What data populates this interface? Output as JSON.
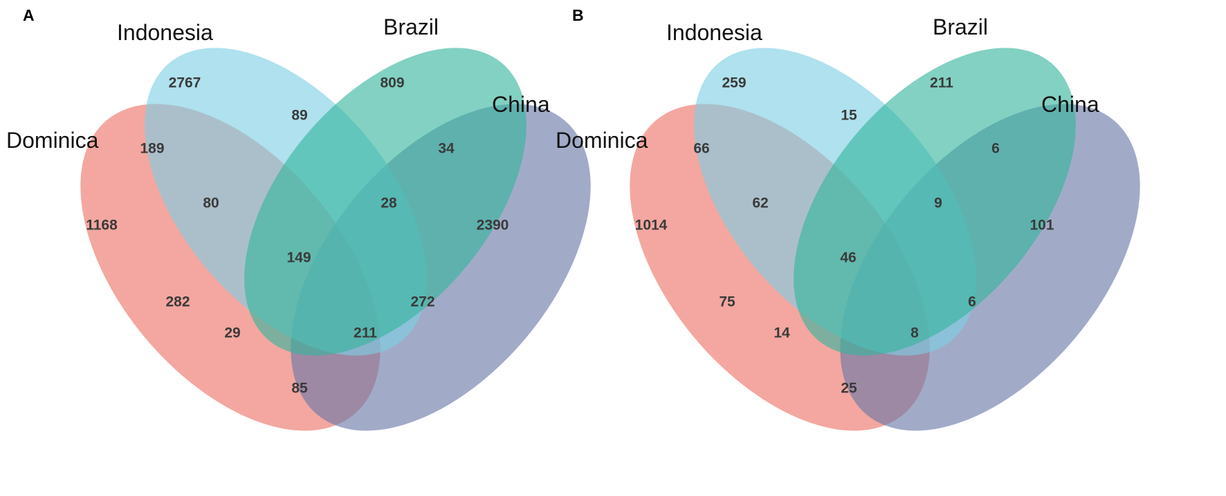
{
  "colors": {
    "Dominica": "#ec7166",
    "Indonesia": "#7ecfe3",
    "Brazil": "#36b49c",
    "China": "#6877a6"
  },
  "panels": [
    {
      "letter": "A",
      "labels": {
        "Indonesia": "Indonesia",
        "Brazil": "Brazil",
        "China": "China",
        "Dominica": "Dominica"
      },
      "counts": {
        "I": "2767",
        "B": "809",
        "D": "1168",
        "C": "2390",
        "IB": "89",
        "DI": "189",
        "BC": "34",
        "DIB": "80",
        "IBC": "28",
        "DIBC": "149",
        "DB": "282",
        "IC": "272",
        "DBC": "29",
        "DIC": "211",
        "DC": "85"
      }
    },
    {
      "letter": "B",
      "labels": {
        "Indonesia": "Indonesia",
        "Brazil": "Brazil",
        "China": "China",
        "Dominica": "Dominica"
      },
      "counts": {
        "I": "259",
        "B": "211",
        "D": "1014",
        "C": "101",
        "IB": "15",
        "DI": "66",
        "BC": "6",
        "DIB": "62",
        "IBC": "9",
        "DIBC": "46",
        "DB": "75",
        "IC": "6",
        "DBC": "14",
        "DIC": "8",
        "DC": "25"
      }
    }
  ]
}
